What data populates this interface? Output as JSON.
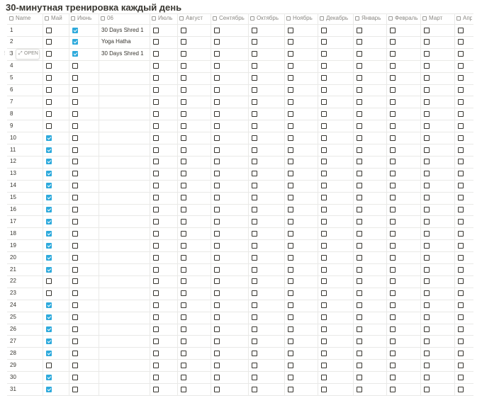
{
  "title": "30-минутная тренировка каждый день",
  "title_menu": "···",
  "open_label": "OPEN",
  "columns": [
    "Name",
    "Май",
    "Июнь",
    "06",
    "Июль",
    "Август",
    "Сентябрь",
    "Октябрь",
    "Ноябрь",
    "Декабрь",
    "Январь",
    "Февраль",
    "Март",
    "Апр..."
  ],
  "rows": [
    {
      "cells": [
        "1",
        false,
        true,
        "30 Days Shred 1",
        false,
        false,
        false,
        false,
        false,
        false,
        false,
        false,
        false,
        false
      ]
    },
    {
      "cells": [
        "2",
        false,
        true,
        "Yoga Hatha",
        false,
        false,
        false,
        false,
        false,
        false,
        false,
        false,
        false,
        false
      ]
    },
    {
      "cells": [
        "3",
        false,
        true,
        "30 Days Shred 1",
        false,
        false,
        false,
        false,
        false,
        false,
        false,
        false,
        false,
        false
      ]
    },
    {
      "cells": [
        "4",
        false,
        false,
        null,
        false,
        false,
        false,
        false,
        false,
        false,
        false,
        false,
        false,
        false
      ]
    },
    {
      "cells": [
        "5",
        false,
        false,
        null,
        false,
        false,
        false,
        false,
        false,
        false,
        false,
        false,
        false,
        false
      ]
    },
    {
      "cells": [
        "6",
        false,
        false,
        null,
        false,
        false,
        false,
        false,
        false,
        false,
        false,
        false,
        false,
        false
      ]
    },
    {
      "cells": [
        "7",
        false,
        false,
        null,
        false,
        false,
        false,
        false,
        false,
        false,
        false,
        false,
        false,
        false
      ]
    },
    {
      "cells": [
        "8",
        false,
        false,
        null,
        false,
        false,
        false,
        false,
        false,
        false,
        false,
        false,
        false,
        false
      ]
    },
    {
      "cells": [
        "9",
        false,
        false,
        null,
        false,
        false,
        false,
        false,
        false,
        false,
        false,
        false,
        false,
        false
      ]
    },
    {
      "cells": [
        "10",
        true,
        false,
        null,
        false,
        false,
        false,
        false,
        false,
        false,
        false,
        false,
        false,
        false
      ]
    },
    {
      "cells": [
        "11",
        true,
        false,
        null,
        false,
        false,
        false,
        false,
        false,
        false,
        false,
        false,
        false,
        false
      ]
    },
    {
      "cells": [
        "12",
        true,
        false,
        null,
        false,
        false,
        false,
        false,
        false,
        false,
        false,
        false,
        false,
        false
      ]
    },
    {
      "cells": [
        "13",
        true,
        false,
        null,
        false,
        false,
        false,
        false,
        false,
        false,
        false,
        false,
        false,
        false
      ]
    },
    {
      "cells": [
        "14",
        true,
        false,
        null,
        false,
        false,
        false,
        false,
        false,
        false,
        false,
        false,
        false,
        false
      ]
    },
    {
      "cells": [
        "15",
        true,
        false,
        null,
        false,
        false,
        false,
        false,
        false,
        false,
        false,
        false,
        false,
        false
      ]
    },
    {
      "cells": [
        "16",
        true,
        false,
        null,
        false,
        false,
        false,
        false,
        false,
        false,
        false,
        false,
        false,
        false
      ]
    },
    {
      "cells": [
        "17",
        true,
        false,
        null,
        false,
        false,
        false,
        false,
        false,
        false,
        false,
        false,
        false,
        false
      ]
    },
    {
      "cells": [
        "18",
        true,
        false,
        null,
        false,
        false,
        false,
        false,
        false,
        false,
        false,
        false,
        false,
        false
      ]
    },
    {
      "cells": [
        "19",
        true,
        false,
        null,
        false,
        false,
        false,
        false,
        false,
        false,
        false,
        false,
        false,
        false
      ]
    },
    {
      "cells": [
        "20",
        true,
        false,
        null,
        false,
        false,
        false,
        false,
        false,
        false,
        false,
        false,
        false,
        false
      ]
    },
    {
      "cells": [
        "21",
        true,
        false,
        null,
        false,
        false,
        false,
        false,
        false,
        false,
        false,
        false,
        false,
        false
      ]
    },
    {
      "cells": [
        "22",
        false,
        false,
        null,
        false,
        false,
        false,
        false,
        false,
        false,
        false,
        false,
        false,
        false
      ]
    },
    {
      "cells": [
        "23",
        false,
        false,
        null,
        false,
        false,
        false,
        false,
        false,
        false,
        false,
        false,
        false,
        false
      ]
    },
    {
      "cells": [
        "24",
        true,
        false,
        null,
        false,
        false,
        false,
        false,
        false,
        false,
        false,
        false,
        false,
        false
      ]
    },
    {
      "cells": [
        "25",
        true,
        false,
        null,
        false,
        false,
        false,
        false,
        false,
        false,
        false,
        false,
        false,
        false
      ]
    },
    {
      "cells": [
        "26",
        true,
        false,
        null,
        false,
        false,
        false,
        false,
        false,
        false,
        false,
        false,
        false,
        false
      ]
    },
    {
      "cells": [
        "27",
        true,
        false,
        null,
        false,
        false,
        false,
        false,
        false,
        false,
        false,
        false,
        false,
        false
      ]
    },
    {
      "cells": [
        "28",
        true,
        false,
        null,
        false,
        false,
        false,
        false,
        false,
        false,
        false,
        false,
        false,
        false
      ]
    },
    {
      "cells": [
        "29",
        false,
        false,
        null,
        false,
        false,
        false,
        false,
        false,
        false,
        false,
        false,
        false,
        false
      ]
    },
    {
      "cells": [
        "30",
        true,
        false,
        null,
        false,
        false,
        false,
        false,
        false,
        false,
        false,
        false,
        false,
        false
      ]
    },
    {
      "cells": [
        "31",
        true,
        false,
        null,
        false,
        false,
        false,
        false,
        false,
        false,
        false,
        false,
        false,
        false
      ]
    }
  ]
}
